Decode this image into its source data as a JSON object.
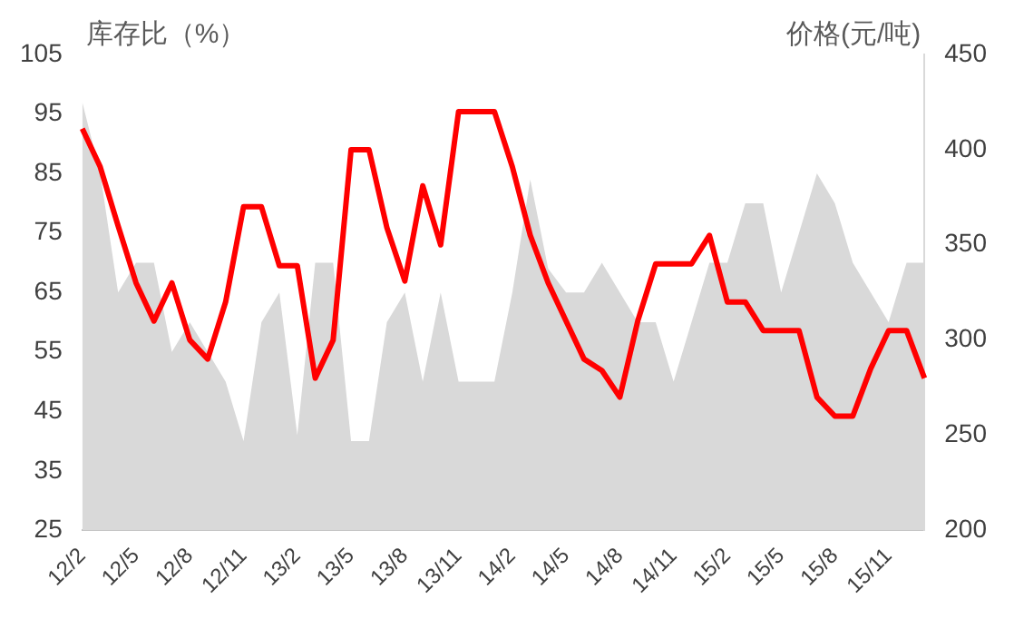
{
  "chart_data": {
    "type": "area",
    "ylabel": "库存比（%）",
    "y2label": "价格(元/吨)",
    "categories": [
      "12/2",
      null,
      null,
      "12/5",
      null,
      null,
      "12/8",
      null,
      null,
      "12/11",
      null,
      null,
      "13/2",
      null,
      null,
      "13/5",
      null,
      null,
      "13/8",
      null,
      null,
      "13/11",
      null,
      null,
      "14/2",
      null,
      null,
      "14/5",
      null,
      null,
      "14/8",
      null,
      null,
      "14/11",
      null,
      null,
      "15/2",
      null,
      null,
      "15/5",
      null,
      null,
      "15/8",
      null,
      null,
      "15/11",
      null,
      null
    ],
    "series": [
      {
        "color": "#d9d9d9",
        "values": [
          97,
          85,
          65,
          70,
          70,
          55,
          60,
          55,
          50,
          40,
          60,
          65,
          41,
          70,
          70,
          40,
          40,
          60,
          65,
          50,
          65,
          50,
          50,
          50,
          65,
          84,
          69,
          65,
          65,
          70,
          65,
          60,
          60,
          50,
          60,
          70,
          70,
          80,
          80,
          65,
          75,
          85,
          80,
          70,
          65,
          60,
          70,
          70
        ]
      },
      {
        "type": "line",
        "axis": "y2",
        "color": "#ff0000",
        "values": [
          411,
          391,
          360,
          330,
          310,
          330,
          300,
          290,
          320,
          370,
          370,
          339,
          339,
          280,
          300,
          400,
          400,
          359,
          331,
          381,
          350,
          420,
          420,
          420,
          391,
          355,
          330,
          310,
          290,
          284,
          270,
          310,
          340,
          340,
          340,
          355,
          320,
          320,
          305,
          305,
          305,
          270,
          260,
          260,
          285,
          305,
          305,
          280
        ]
      }
    ],
    "ylim": [
      25,
      105
    ],
    "yticks": [
      25,
      35,
      45,
      55,
      65,
      75,
      85,
      95,
      105
    ],
    "y2lim": [
      200,
      450
    ],
    "y2ticks": [
      200,
      250,
      300,
      350,
      400,
      450
    ],
    "grid": false,
    "legend": false
  }
}
